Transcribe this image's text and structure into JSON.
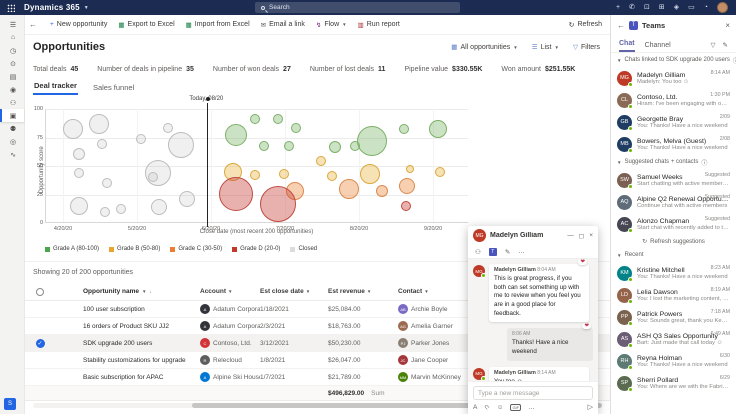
{
  "topbar": {
    "app_title": "Dynamics 365",
    "search_placeholder": "Search",
    "icons": [
      {
        "name": "quick-create-icon",
        "glyph": "+"
      },
      {
        "name": "phone-icon",
        "glyph": "✆"
      },
      {
        "name": "device-icon",
        "glyph": "⊡"
      },
      {
        "name": "apps-icon",
        "glyph": "⊞"
      },
      {
        "name": "security-icon",
        "glyph": "◈"
      },
      {
        "name": "window-icon",
        "glyph": "▭"
      },
      {
        "name": "notifications-icon",
        "glyph": "◔"
      }
    ]
  },
  "sidebar": {
    "items": [
      {
        "name": "menu",
        "glyph": "☰",
        "selected": false
      },
      {
        "name": "home",
        "glyph": "⌂",
        "selected": false
      },
      {
        "name": "recent",
        "glyph": "◷",
        "selected": false
      },
      {
        "name": "pinned",
        "glyph": "⊙",
        "selected": false
      },
      {
        "name": "activities",
        "glyph": "▤",
        "selected": false
      },
      {
        "name": "accounts",
        "glyph": "◉",
        "selected": false
      },
      {
        "name": "contacts",
        "glyph": "⚇",
        "selected": false
      },
      {
        "name": "opportunities",
        "glyph": "▣",
        "selected": true
      },
      {
        "name": "competitors",
        "glyph": "⚉",
        "selected": false
      },
      {
        "name": "quotes",
        "glyph": "◎",
        "selected": false
      },
      {
        "name": "dashboards",
        "glyph": "∿",
        "selected": false
      }
    ],
    "app_badge": "S"
  },
  "command_bar": {
    "back_glyph": "←",
    "items": [
      {
        "label": "New opportunity",
        "icon": "new-opportunity-icon",
        "glyph": "+",
        "color": "#2266e3",
        "chevron": false
      },
      {
        "label": "Export to Excel",
        "icon": "excel-export-icon",
        "glyph": "▦",
        "color": "#107c41",
        "chevron": false
      },
      {
        "label": "Import from Excel",
        "icon": "excel-import-icon",
        "glyph": "▦",
        "color": "#107c41",
        "chevron": false
      },
      {
        "label": "Email a link",
        "icon": "email-icon",
        "glyph": "✉",
        "color": "#605e5c",
        "chevron": false
      },
      {
        "label": "Flow",
        "icon": "flow-icon",
        "glyph": "↯",
        "color": "#742774",
        "chevron": true
      },
      {
        "label": "Run report",
        "icon": "report-icon",
        "glyph": "▥",
        "color": "#a4262c",
        "chevron": false
      }
    ],
    "refresh_label": "Refresh",
    "refresh_glyph": "↻"
  },
  "page": {
    "title": "Opportunities",
    "view_selector": "All opportunities",
    "layout_selector": "List",
    "filters_label": "Filters"
  },
  "stats": [
    {
      "label": "Total deals",
      "value": "45"
    },
    {
      "label": "Number of deals in pipeline",
      "value": "35"
    },
    {
      "label": "Number of won deals",
      "value": "27"
    },
    {
      "label": "Number of lost deals",
      "value": "11"
    },
    {
      "label": "Pipeline value",
      "value": "$330.55K"
    },
    {
      "label": "Won amount",
      "value": "$251.55K"
    }
  ],
  "tabs": [
    {
      "label": "Deal tracker",
      "active": true
    },
    {
      "label": "Sales funnel",
      "active": false
    }
  ],
  "chart_data": {
    "type": "scatter",
    "bubble": true,
    "ylabel": "Opportunity score",
    "xlabel": "Close date (most recent 200 opportunities)",
    "ylim": [
      0,
      100
    ],
    "yticks": [
      0,
      25,
      50,
      75,
      100
    ],
    "xticklabels": [
      "4/20/20",
      "5/20/20",
      "6/20/20",
      "7/20/20",
      "8/20/20",
      "9/20/20"
    ],
    "today_label": "Today, 08/20",
    "today_x": 1.95,
    "grid": true,
    "legend_position": "bottom-left",
    "point_format": [
      "x_months_from_4_20_20",
      "opportunity_score",
      "radius_px"
    ],
    "legend": [
      {
        "label": "Grade A (80-100)",
        "color": "#4ba64b"
      },
      {
        "label": "Grade B (50-80)",
        "color": "#eaa531"
      },
      {
        "label": "Grade C (30-50)",
        "color": "#ed7d31"
      },
      {
        "label": "Grade D (20-0)",
        "color": "#c0392b"
      },
      {
        "label": "Closed",
        "color": "#dcdcdc"
      }
    ],
    "series": [
      {
        "name": "Closed",
        "fill": "rgba(185,185,185,0.22)",
        "stroke": "#bdbdbd",
        "points": [
          [
            0.14,
            82.5,
            10
          ],
          [
            0.49,
            86.8,
            10
          ],
          [
            0.21,
            60.5,
            6
          ],
          [
            0.53,
            69.3,
            5
          ],
          [
            0.22,
            43.9,
            5
          ],
          [
            0.6,
            35.1,
            5
          ],
          [
            1.06,
            73.7,
            5
          ],
          [
            1.29,
            43.9,
            13
          ],
          [
            1.21,
            40.4,
            5
          ],
          [
            1.42,
            83.3,
            5
          ],
          [
            1.59,
            68.4,
            13
          ],
          [
            0.22,
            14.9,
            9
          ],
          [
            0.57,
            9.6,
            5
          ],
          [
            0.79,
            12.3,
            5
          ],
          [
            1.3,
            14.0,
            8
          ],
          [
            1.67,
            21.1,
            8
          ]
        ]
      },
      {
        "name": "Grade A (80-100)",
        "fill": "rgba(120,180,100,0.38)",
        "stroke": "#7cb069",
        "points": [
          [
            2.34,
            77.2,
            11
          ],
          [
            2.59,
            91.2,
            5
          ],
          [
            2.72,
            67.5,
            5
          ],
          [
            2.9,
            91.2,
            5
          ],
          [
            3.06,
            67.5,
            5
          ],
          [
            3.15,
            83.3,
            5
          ],
          [
            3.67,
            66.7,
            6
          ],
          [
            3.94,
            67.5,
            5
          ],
          [
            4.18,
            71.9,
            15
          ],
          [
            4.61,
            82.5,
            5
          ],
          [
            5.07,
            82.5,
            9
          ]
        ]
      },
      {
        "name": "Grade B (50-80)",
        "fill": "rgba(235,180,60,0.38)",
        "stroke": "#d9a93e",
        "points": [
          [
            2.3,
            44.7,
            9
          ],
          [
            2.6,
            42.1,
            5
          ],
          [
            2.98,
            43.0,
            5
          ],
          [
            3.48,
            54.4,
            5
          ],
          [
            3.63,
            41.2,
            5
          ],
          [
            4.15,
            43.0,
            10
          ],
          [
            4.69,
            47.4,
            4
          ],
          [
            5.1,
            44.7,
            5
          ]
        ]
      },
      {
        "name": "Grade C (30-50)",
        "fill": "rgba(235,140,70,0.42)",
        "stroke": "#dd8a4e",
        "points": [
          [
            3.13,
            28.1,
            9
          ],
          [
            3.87,
            29.8,
            10
          ],
          [
            4.31,
            28.1,
            6
          ],
          [
            4.65,
            32.5,
            8
          ]
        ]
      },
      {
        "name": "Grade D (20-0)",
        "fill": "rgba(200,70,60,0.42)",
        "stroke": "#bf4a42",
        "points": [
          [
            2.34,
            25.4,
            17
          ],
          [
            2.91,
            16.7,
            18
          ],
          [
            4.64,
            14.9,
            5
          ]
        ]
      }
    ]
  },
  "table": {
    "caption": "Showing 20 of 200 opportunities",
    "columns": [
      {
        "label": "Opportunity name",
        "sorted": true
      },
      {
        "label": "Account",
        "sorted": false
      },
      {
        "label": "Est close date",
        "sorted": false
      },
      {
        "label": "Est revenue",
        "sorted": false
      },
      {
        "label": "Contact",
        "sorted": false
      },
      {
        "label": "Status",
        "sorted": false
      }
    ],
    "rows": [
      {
        "name": "100 user subscription",
        "account": "Adatum Corporation",
        "account_color": "#33333b",
        "account_initial": "A",
        "close": "1/18/2021",
        "revenue": "$25,084.00",
        "contact": "Archie Boyle",
        "contact_initials": "AB",
        "contact_color": "#7b69c4",
        "selected": false
      },
      {
        "name": "16 orders of Product SKU JJ2",
        "account": "Adatum Corporation",
        "account_color": "#33333b",
        "account_initial": "A",
        "close": "2/3/2021",
        "revenue": "$18,763.00",
        "contact": "Amelia Garner",
        "contact_initials": "AG",
        "contact_color": "#9c6b4f",
        "selected": false
      },
      {
        "name": "SDK upgrade 200 users",
        "account": "Contoso, Ltd.",
        "account_color": "#d13438",
        "account_initial": "C",
        "close": "3/12/2021",
        "revenue": "$50,230.00",
        "contact": "Parker Jones",
        "contact_initials": "PJ",
        "contact_color": "#8a7f72",
        "selected": true
      },
      {
        "name": "Stability customizations for upgrade",
        "account": "Relecloud",
        "account_color": "#605e5c",
        "account_initial": "R",
        "close": "1/8/2021",
        "revenue": "$26,047.00",
        "contact": "Jane Cooper",
        "contact_initials": "JC",
        "contact_color": "#a4373a",
        "selected": false
      },
      {
        "name": "Basic subscription for APAC",
        "account": "Alpine Ski House",
        "account_color": "#0078d4",
        "account_initial": "A",
        "close": "1/7/2021",
        "revenue": "$21,789.00",
        "contact": "Marvin McKinney",
        "contact_initials": "MM",
        "contact_color": "#498205",
        "selected": false
      }
    ],
    "sum": "$496,829.00",
    "sum_label": "Sum"
  },
  "chat_popup": {
    "name": "Madelyn Gilliam",
    "initials": "MG",
    "avatar_color": "#bf3a26",
    "window_controls": [
      {
        "name": "minimize-icon",
        "glyph": "—"
      },
      {
        "name": "popout-icon",
        "glyph": "◻"
      },
      {
        "name": "close-icon",
        "glyph": "×"
      }
    ],
    "toolbar": [
      {
        "name": "add-people-icon",
        "glyph": "⚇",
        "teams": false
      },
      {
        "name": "teams-logo-icon",
        "glyph": "T",
        "teams": true
      },
      {
        "name": "edit-icon",
        "glyph": "✎",
        "teams": false
      },
      {
        "name": "more-icon",
        "glyph": "…",
        "teams": false
      }
    ],
    "messages": [
      {
        "own": false,
        "author": "Madelyn Gilliam",
        "time": "8:04 AM",
        "text": "This is great progress, if you both can set something up with me to review when you feel you are in a good place for feedback.",
        "reaction": "❤"
      },
      {
        "own": true,
        "author": "",
        "time": "8:06 AM",
        "text": "Thanks! Have a nice weekend",
        "reaction": "❤"
      },
      {
        "own": false,
        "author": "Madelyn Gilliam",
        "time": "8:14 AM",
        "text": "You too ☺",
        "reaction": ""
      }
    ],
    "input_placeholder": "Type a new message",
    "compose_icons": [
      {
        "name": "format-icon",
        "glyph": "A",
        "style": ""
      },
      {
        "name": "attach-icon",
        "glyph": "⊂",
        "style": "rot"
      },
      {
        "name": "emoji-icon",
        "glyph": "☺",
        "style": ""
      },
      {
        "name": "gif-icon",
        "glyph": "GIF",
        "style": "box"
      },
      {
        "name": "more-compose-icon",
        "glyph": "…",
        "style": ""
      }
    ],
    "send_glyph": "▷"
  },
  "teams_panel": {
    "title": "Teams",
    "back_glyph": "←",
    "close_glyph": "×",
    "tabs": [
      {
        "label": "Chat",
        "active": true
      },
      {
        "label": "Channel",
        "active": false
      }
    ],
    "filter_icon_glyph": "▽",
    "compose_icon_glyph": "✎",
    "refresh_suggestions_label": "Refresh suggestions",
    "refresh_glyph": "↻",
    "sections": [
      {
        "header": "Chats linked to SDK upgrade 200 users",
        "info": true,
        "items": [
          {
            "name": "Madelyn Gilliam",
            "preview": "Madelyn: You too ☺",
            "time": "8:14 AM",
            "initials": "MG",
            "color": "#bf3a26",
            "presence": true
          },
          {
            "name": "Contoso, Ltd.",
            "preview": "Hiram: I've been engaging with our contac...",
            "time": "1:30 PM",
            "initials": "CL",
            "color": "#8a6a54",
            "presence": true
          },
          {
            "name": "Georgette Bray",
            "preview": "You: Thanks! Have a nice weekend",
            "time": "2/09",
            "initials": "GB",
            "color": "#1f3d63",
            "presence": true
          },
          {
            "name": "Bowers, Melva (Guest)",
            "preview": "You: Thanks! Have a nice weekend",
            "time": "2/08",
            "initials": "MB",
            "color": "#1f3d63",
            "presence": true
          }
        ]
      },
      {
        "header": "Suggested chats + contacts",
        "info": true,
        "items": [
          {
            "name": "Samuel Weeks",
            "preview": "Start chatting with active member of Sales T...",
            "time": "Suggested",
            "initials": "SW",
            "color": "#7a5f52",
            "presence": true
          },
          {
            "name": "Alpine Q2 Renewal Opportunity",
            "preview": "Continue chat with active members",
            "time": "Suggested",
            "initials": "AQ",
            "color": "#5f6b79",
            "presence": false
          },
          {
            "name": "Alonzo Chapman",
            "preview": "Start chat with recently added to the Timeline",
            "time": "Suggested",
            "initials": "AC",
            "color": "#474754",
            "presence": true
          }
        ]
      },
      {
        "header": "Recent",
        "info": false,
        "items": [
          {
            "name": "Kristine Mitchell",
            "preview": "You: Thanks! Have a nice weekend",
            "time": "8:23 AM",
            "initials": "KM",
            "color": "#038387",
            "presence": true
          },
          {
            "name": "Lelia Dawson",
            "preview": "You: I lost the marketing content, could you...",
            "time": "8:19 AM",
            "initials": "LD",
            "color": "#96644a",
            "presence": true
          },
          {
            "name": "Patrick Powers",
            "preview": "You: Sounds great, thank you Kenny!",
            "time": "7:18 AM",
            "initials": "PP",
            "color": "#7a624e",
            "presence": true
          },
          {
            "name": "ASH Q3 Sales Opportunity",
            "preview": "Bart: Just made that call today ☺",
            "time": "6:49 AM",
            "initials": "AS",
            "color": "#6b5d73",
            "presence": true
          },
          {
            "name": "Reyna Holman",
            "preview": "You: Thanks! Have a nice weekend",
            "time": "6/30",
            "initials": "RH",
            "color": "#5d7a74",
            "presence": true
          },
          {
            "name": "Sherri Pollard",
            "preview": "You: Where are we with the Fabrikam deal f...",
            "time": "6/29",
            "initials": "SP",
            "color": "#5a6b4f",
            "presence": true
          }
        ]
      }
    ]
  }
}
